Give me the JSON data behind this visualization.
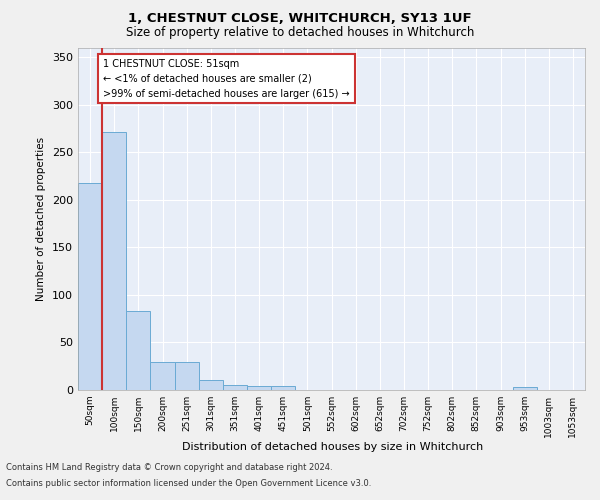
{
  "title": "1, CHESTNUT CLOSE, WHITCHURCH, SY13 1UF",
  "subtitle": "Size of property relative to detached houses in Whitchurch",
  "xlabel": "Distribution of detached houses by size in Whitchurch",
  "ylabel": "Number of detached properties",
  "bar_labels": [
    "50sqm",
    "100sqm",
    "150sqm",
    "200sqm",
    "251sqm",
    "301sqm",
    "351sqm",
    "401sqm",
    "451sqm",
    "501sqm",
    "552sqm",
    "602sqm",
    "652sqm",
    "702sqm",
    "752sqm",
    "802sqm",
    "852sqm",
    "903sqm",
    "953sqm",
    "1003sqm",
    "1053sqm"
  ],
  "bar_values": [
    218,
    271,
    83,
    29,
    29,
    11,
    5,
    4,
    4,
    0,
    0,
    0,
    0,
    0,
    0,
    0,
    0,
    0,
    3,
    0,
    0
  ],
  "bar_color": "#c5d8f0",
  "bar_edge_color": "#6aaad4",
  "highlight_color": "#cc3333",
  "annotation_box_bg": "#ffffff",
  "annotation_box_edge": "#cc3333",
  "annotation_text_line1": "1 CHESTNUT CLOSE: 51sqm",
  "annotation_text_line2": "← <1% of detached houses are smaller (2)",
  "annotation_text_line3": ">99% of semi-detached houses are larger (615) →",
  "background_color": "#e8eef8",
  "fig_bg_color": "#f0f0f0",
  "ylim": [
    0,
    360
  ],
  "yticks": [
    0,
    50,
    100,
    150,
    200,
    250,
    300,
    350
  ],
  "grid_color": "#ffffff",
  "footer_line1": "Contains HM Land Registry data © Crown copyright and database right 2024.",
  "footer_line2": "Contains public sector information licensed under the Open Government Licence v3.0.",
  "figsize": [
    6.0,
    5.0
  ],
  "dpi": 100
}
